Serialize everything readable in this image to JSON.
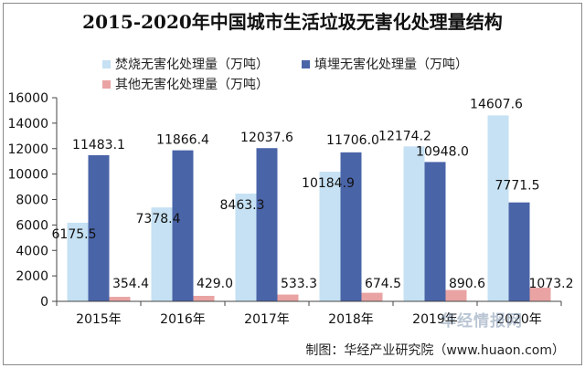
{
  "chart_data": {
    "type": "bar",
    "title": "2015-2020年中国城市生活垃圾无害化处理量结构",
    "categories": [
      "2015年",
      "2016年",
      "2017年",
      "2018年",
      "2019年",
      "2020年"
    ],
    "series": [
      {
        "name": "焚烧无害化处理量（万吨）",
        "color": "#c5e1f3",
        "values": [
          6175.5,
          7378.4,
          8463.3,
          10184.9,
          12174.2,
          14607.6
        ],
        "labels": [
          "6175.5",
          "7378.4",
          "8463.3",
          "10184.9",
          "12174.2",
          "14607.6"
        ]
      },
      {
        "name": "填埋无害化处理量（万吨）",
        "color": "#4a64a8",
        "values": [
          11483.1,
          11866.4,
          12037.6,
          11706.0,
          10948.0,
          7771.5
        ],
        "labels": [
          "11483.1",
          "11866.4",
          "12037.6",
          "11706.0",
          "10948.0",
          "7771.5"
        ]
      },
      {
        "name": "其他无害化处理量（万吨）",
        "color": "#eaa3a3",
        "values": [
          354.4,
          429.0,
          533.3,
          674.5,
          890.6,
          1073.2
        ],
        "labels": [
          "354.4",
          "429.0",
          "533.3",
          "674.5",
          "890.6",
          "1073.2"
        ]
      }
    ],
    "ylim": [
      0,
      16000
    ],
    "yticks": [
      0,
      2000,
      4000,
      6000,
      8000,
      10000,
      12000,
      14000,
      16000
    ],
    "xlabel": "",
    "ylabel": "",
    "grid": false,
    "legend": "top"
  },
  "source": "制图：华经产业研究院（www.huaon.com）",
  "watermark": "华经情报网"
}
